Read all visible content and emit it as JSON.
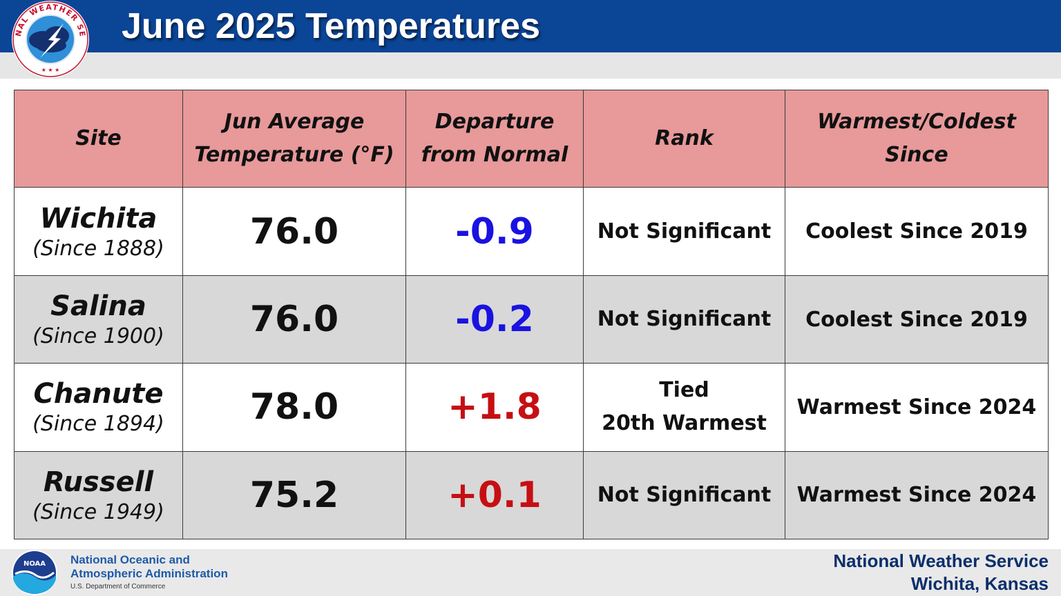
{
  "header": {
    "title": "June 2025 Temperatures",
    "logo_text": "NATIONAL WEATHER SERVICE"
  },
  "table": {
    "columns": [
      "Site",
      "Jun Average Temperature (°F)",
      "Departure from Normal",
      "Rank",
      "Warmest/Coldest Since"
    ],
    "rows": [
      {
        "site": "Wichita",
        "since": "(Since 1888)",
        "avg": "76.0",
        "departure": "-0.9",
        "departure_sign": "negative",
        "rank": "Not Significant",
        "warmest_coldest": "Coolest Since 2019"
      },
      {
        "site": "Salina",
        "since": "(Since 1900)",
        "avg": "76.0",
        "departure": "-0.2",
        "departure_sign": "negative",
        "rank": "Not Significant",
        "warmest_coldest": "Coolest Since 2019"
      },
      {
        "site": "Chanute",
        "since": "(Since 1894)",
        "avg": "78.0",
        "departure": "+1.8",
        "departure_sign": "positive",
        "rank": "Tied\n20th Warmest",
        "warmest_coldest": "Warmest Since 2024"
      },
      {
        "site": "Russell",
        "since": "(Since 1949)",
        "avg": "75.2",
        "departure": "+0.1",
        "departure_sign": "positive",
        "rank": "Not Significant",
        "warmest_coldest": "Warmest Since 2024"
      }
    ]
  },
  "footer": {
    "noaa_logo_text": "NOAA",
    "noaa_name": "National Oceanic and Atmospheric Administration",
    "noaa_dept": "U.S. Department of Commerce",
    "office_line1": "National Weather Service",
    "office_line2": "Wichita, Kansas"
  },
  "colors": {
    "header_blue": "#0b4596",
    "table_header_pink": "#e8999a",
    "negative_departure": "#1a12e0",
    "positive_departure": "#c60f13",
    "alt_row_gray": "#d8d8d8"
  }
}
